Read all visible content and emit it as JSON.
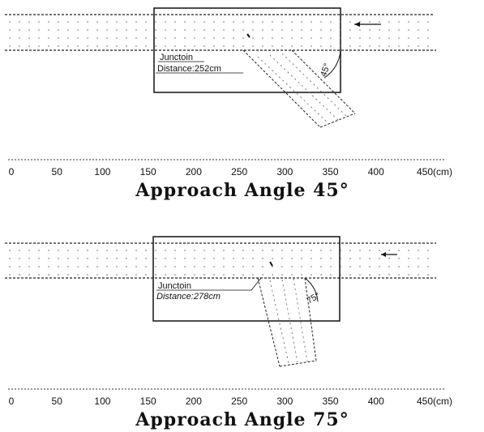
{
  "panels": [
    {
      "junction_label": "Junctoin",
      "distance_label": "Distance:252cm",
      "angle_label": "45°",
      "approach_angle_deg": 45,
      "distance_cm": 252,
      "title": "Approach Angle 45°"
    },
    {
      "junction_label": "Junctoin",
      "distance_label": "Distance:278cm",
      "angle_label": "75°",
      "approach_angle_deg": 75,
      "distance_cm": 278,
      "title": "Approach Angle 75°"
    }
  ],
  "axis": {
    "ticks": [
      "0",
      "50",
      "100",
      "150",
      "200",
      "250",
      "300",
      "350",
      "400",
      "450(cm)"
    ],
    "tick_values": [
      0,
      50,
      100,
      150,
      200,
      250,
      300,
      350,
      400,
      450
    ]
  },
  "colors": {
    "ink": "#111111",
    "dots": "#555555"
  }
}
